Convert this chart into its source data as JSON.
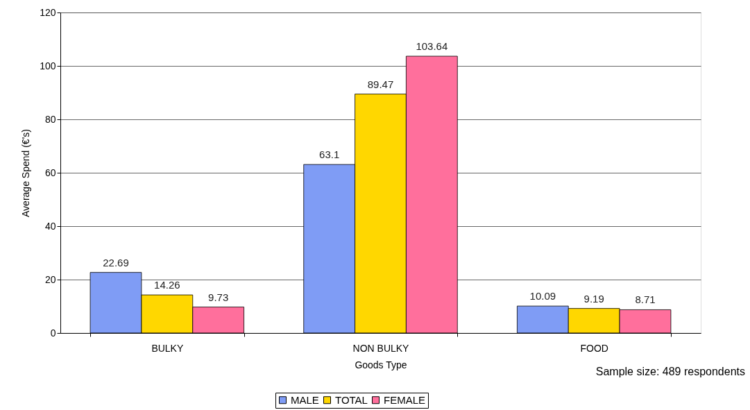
{
  "chart_data": {
    "type": "bar",
    "xlabel": "Goods Type",
    "ylabel": "Average Spend (€'s)",
    "categories": [
      "BULKY",
      "NON BULKY",
      "FOOD"
    ],
    "series": [
      {
        "name": "MALE",
        "color": "#7f9cf5",
        "values": [
          22.69,
          63.1,
          10.09
        ]
      },
      {
        "name": "TOTAL",
        "color": "#ffd700",
        "values": [
          14.26,
          89.47,
          9.19
        ]
      },
      {
        "name": "FEMALE",
        "color": "#ff6f9c",
        "values": [
          9.73,
          103.64,
          8.71
        ]
      }
    ],
    "ylim": [
      0,
      120
    ],
    "yticks": [
      0,
      20,
      40,
      60,
      80,
      100,
      120
    ],
    "grid": "y",
    "legend": "bottom",
    "data_labels": true,
    "annotations": [
      "Sample size: 489 respondents"
    ]
  }
}
